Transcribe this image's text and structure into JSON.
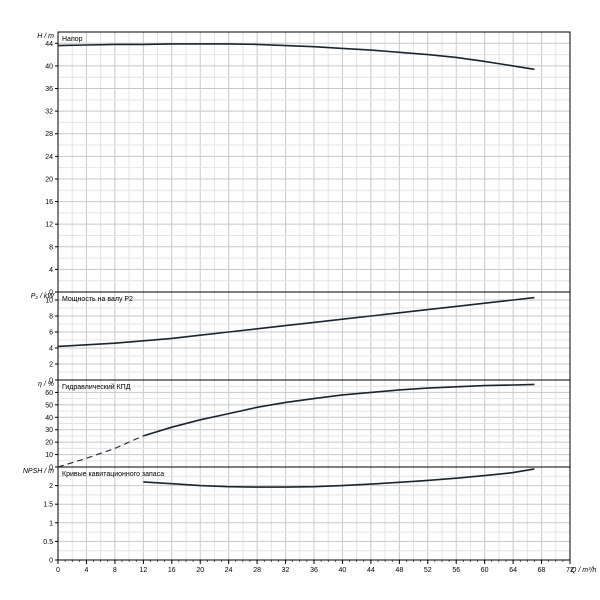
{
  "chart_data": {
    "type": "line",
    "x_axis": {
      "label": "Q / m³/h",
      "min": 0,
      "max": 72,
      "ticks": [
        "0",
        "4",
        "8",
        "12",
        "16",
        "20",
        "24",
        "28",
        "32",
        "36",
        "40",
        "44",
        "48",
        "52",
        "56",
        "60",
        "64",
        "68",
        "72"
      ]
    },
    "grid": true,
    "panels": [
      {
        "title": "Напор",
        "ylabel": "H / m",
        "ylim": [
          0,
          46
        ],
        "ticks": [
          0,
          4,
          8,
          12,
          16,
          20,
          24,
          28,
          32,
          36,
          40,
          44
        ],
        "series": [
          {
            "x": [
              0,
              4,
              8,
              12,
              16,
              20,
              24,
              28,
              32,
              36,
              40,
              44,
              48,
              52,
              56,
              60,
              64,
              67
            ],
            "y": [
              43.6,
              43.7,
              43.8,
              43.8,
              43.9,
              43.9,
              43.9,
              43.8,
              43.6,
              43.4,
              43.1,
              42.8,
              42.4,
              42.0,
              41.5,
              40.8,
              40.0,
              39.4
            ],
            "dashed_until": null
          }
        ]
      },
      {
        "title": "Мощность на валу P2",
        "ylabel": "P₂ / kW",
        "ylim": [
          0,
          11
        ],
        "ticks": [
          0,
          2,
          4,
          6,
          8,
          10
        ],
        "series": [
          {
            "x": [
              0,
              4,
              8,
              12,
              16,
              20,
              24,
              28,
              32,
              36,
              40,
              44,
              48,
              52,
              56,
              60,
              64,
              67
            ],
            "y": [
              4.2,
              4.4,
              4.6,
              4.9,
              5.2,
              5.6,
              6.0,
              6.4,
              6.8,
              7.2,
              7.6,
              8.0,
              8.4,
              8.8,
              9.2,
              9.6,
              10.0,
              10.3
            ],
            "dashed_until": null
          }
        ]
      },
      {
        "title": "Гидравлический КПД",
        "ylabel": "η / %",
        "ylim": [
          0,
          70
        ],
        "ticks": [
          0,
          10,
          20,
          30,
          40,
          50,
          60
        ],
        "series": [
          {
            "x": [
              0,
              4,
              8,
              12,
              16,
              20,
              24,
              28,
              32,
              36,
              40,
              44,
              48,
              52,
              56,
              60,
              64,
              67
            ],
            "y": [
              0,
              7,
              15,
              25,
              32,
              38,
              43,
              48,
              52,
              55,
              58,
              60,
              62,
              63.5,
              64.5,
              65.5,
              66,
              66.5
            ],
            "dashed_until": 12
          }
        ]
      },
      {
        "title": "Кривые кавитационного запаса",
        "ylabel": "NPSH / m",
        "ylim": [
          0,
          2.5
        ],
        "ticks": [
          0,
          0.5,
          1,
          1.5,
          2
        ],
        "tick_labels": [
          "0",
          "0.5",
          "1",
          "1.5",
          "2"
        ],
        "series": [
          {
            "x": [
              12,
              16,
              20,
              24,
              28,
              32,
              36,
              40,
              44,
              48,
              52,
              56,
              60,
              64,
              67
            ],
            "y": [
              2.1,
              2.05,
              2.0,
              1.97,
              1.96,
              1.96,
              1.97,
              2.0,
              2.04,
              2.09,
              2.14,
              2.2,
              2.27,
              2.35,
              2.45
            ],
            "dashed_until": null
          }
        ]
      }
    ]
  }
}
